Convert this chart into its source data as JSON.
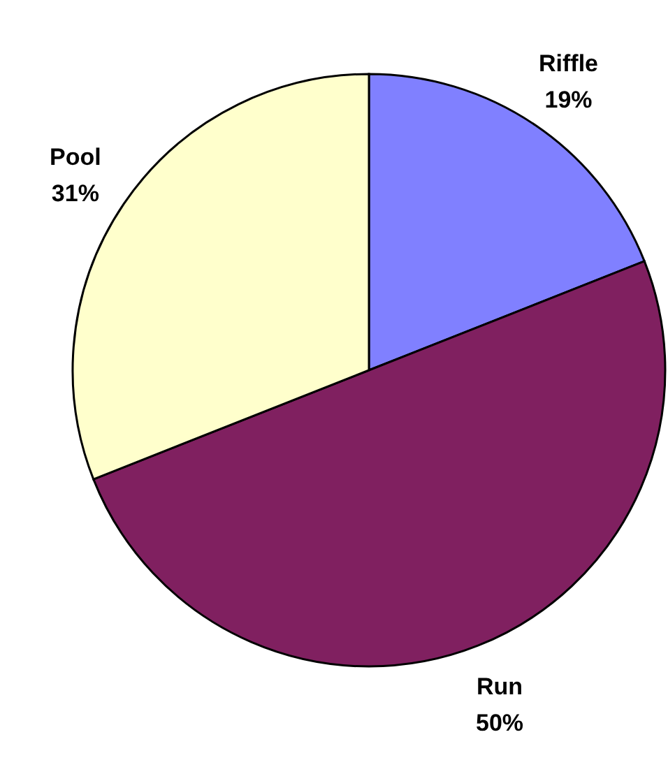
{
  "chart_data": {
    "type": "pie",
    "categories": [
      "Riffle",
      "Run",
      "Pool"
    ],
    "values": [
      19,
      50,
      31
    ],
    "colors": [
      "#8080ff",
      "#802060",
      "#ffffcc"
    ],
    "value_labels": [
      "19%",
      "50%",
      "31%"
    ]
  }
}
